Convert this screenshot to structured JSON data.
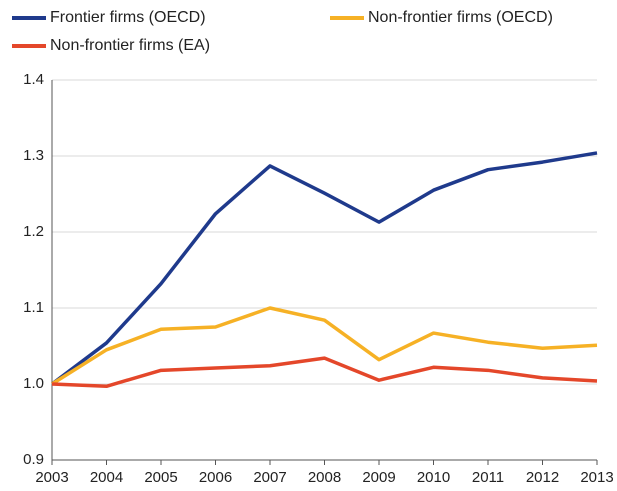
{
  "chart_data": {
    "type": "line",
    "x": [
      2003,
      2004,
      2005,
      2006,
      2007,
      2008,
      2009,
      2010,
      2011,
      2012,
      2013
    ],
    "xlim": [
      2003,
      2013
    ],
    "xticks": [
      2003,
      2004,
      2005,
      2006,
      2007,
      2008,
      2009,
      2010,
      2011,
      2012,
      2013
    ],
    "ylim": [
      0.9,
      1.4
    ],
    "yticks": [
      0.9,
      {
        "value": 1,
        "label": "1.0"
      },
      1.1,
      1.2,
      1.3,
      1.4
    ],
    "grid": true,
    "legend": "top",
    "series": [
      {
        "name": "Frontier firms (OECD)",
        "color": "#1f3a8c",
        "values": [
          1.0,
          1.054,
          1.132,
          1.224,
          1.287,
          1.251,
          1.213,
          1.255,
          1.282,
          1.292,
          1.304
        ]
      },
      {
        "name": "Non-frontier firms (OECD)",
        "color": "#f6b125",
        "values": [
          1.0,
          1.045,
          1.072,
          1.075,
          1.1,
          1.084,
          1.032,
          1.067,
          1.055,
          1.047,
          1.051
        ]
      },
      {
        "name": "Non-frontier firms (EA)",
        "color": "#e4472a",
        "values": [
          1.0,
          0.997,
          1.018,
          1.021,
          1.024,
          1.034,
          1.005,
          1.022,
          1.018,
          1.008,
          1.004
        ]
      }
    ]
  }
}
